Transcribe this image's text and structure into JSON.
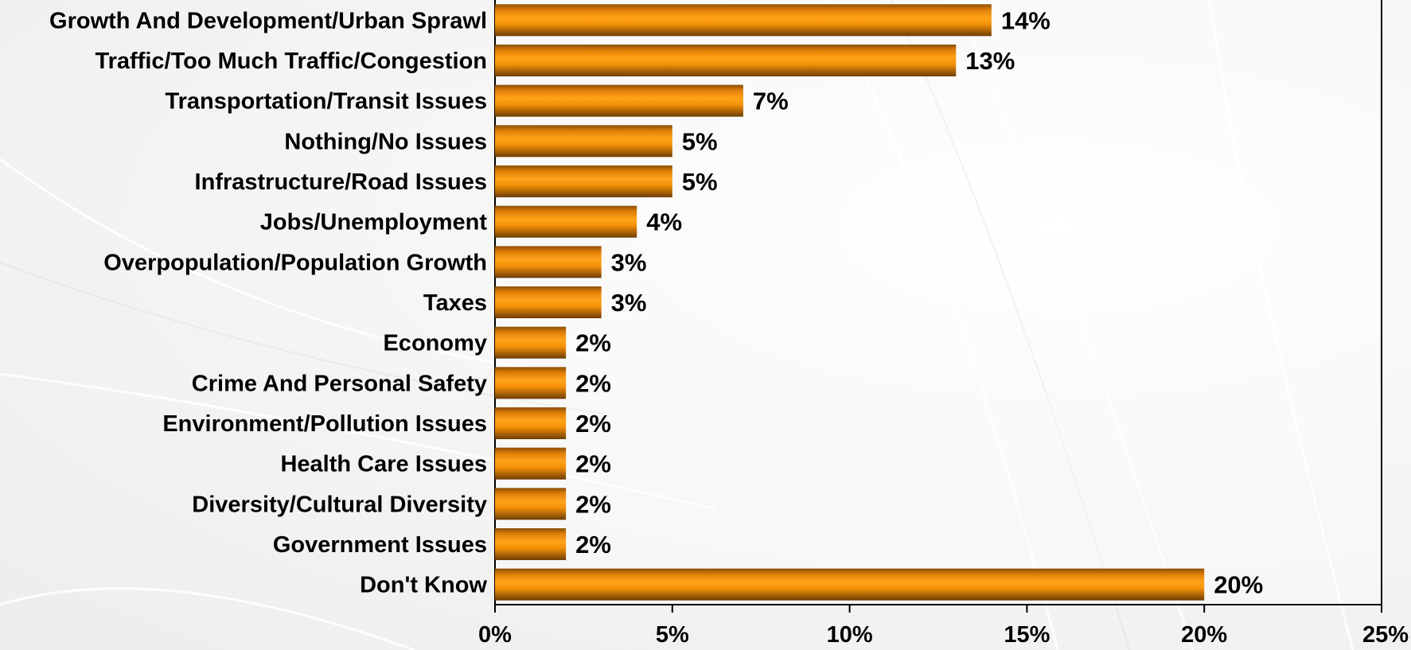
{
  "chart_data": {
    "type": "bar",
    "orientation": "horizontal",
    "categories": [
      "Growth And Development/Urban Sprawl",
      "Traffic/Too Much Traffic/Congestion",
      "Transportation/Transit Issues",
      "Nothing/No Issues",
      "Infrastructure/Road Issues",
      "Jobs/Unemployment",
      "Overpopulation/Population Growth",
      "Taxes",
      "Economy",
      "Crime And Personal Safety",
      "Environment/Pollution Issues",
      "Health Care Issues",
      "Diversity/Cultural Diversity",
      "Government Issues",
      "Don't Know"
    ],
    "values": [
      14,
      13,
      7,
      5,
      5,
      4,
      3,
      3,
      2,
      2,
      2,
      2,
      2,
      2,
      20
    ],
    "value_labels": [
      "14%",
      "13%",
      "7%",
      "5%",
      "5%",
      "4%",
      "3%",
      "3%",
      "2%",
      "2%",
      "2%",
      "2%",
      "2%",
      "2%",
      "20%"
    ],
    "xlim": [
      0,
      25
    ],
    "xticks": [
      0,
      5,
      10,
      15,
      20,
      25
    ],
    "xtick_labels": [
      "0%",
      "5%",
      "10%",
      "15%",
      "20%",
      "25%"
    ],
    "title": "",
    "xlabel": "",
    "ylabel": "",
    "grid": false,
    "legend": "none",
    "bar_color": "#f5960c",
    "bar_shadow_color": "#7a4606"
  }
}
